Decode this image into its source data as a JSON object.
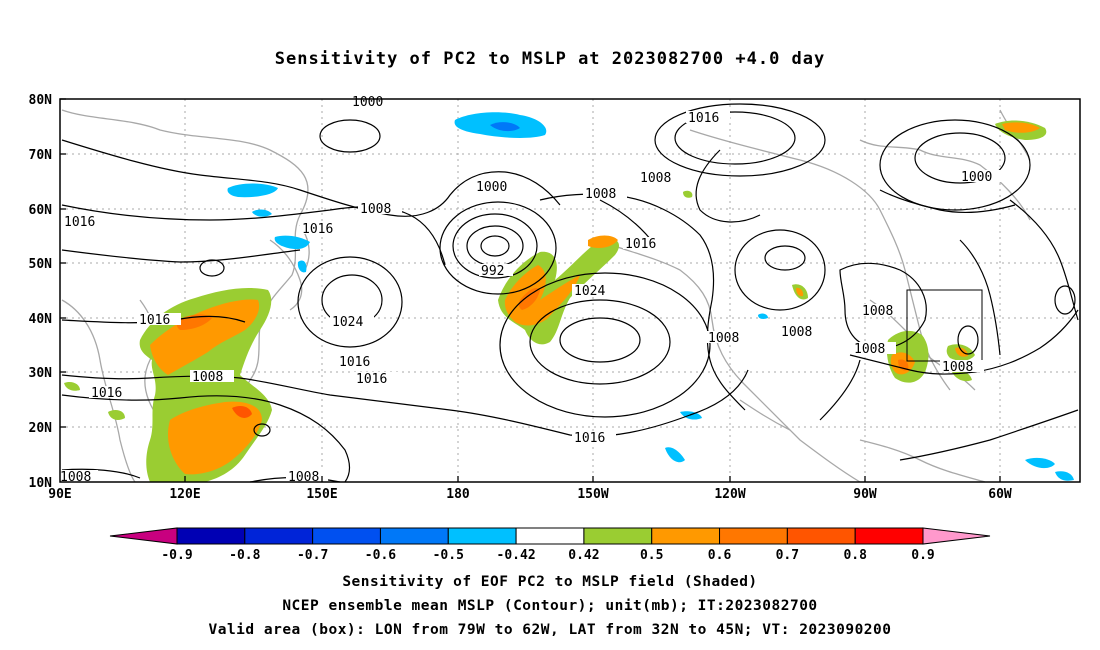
{
  "title": "Sensitivity of PC2 to MSLP at 2023082700 +4.0 day",
  "lat_labels": [
    "80N",
    "70N",
    "60N",
    "50N",
    "40N",
    "30N",
    "20N",
    "10N"
  ],
  "lon_labels": [
    "90E",
    "120E",
    "150E",
    "180",
    "150W",
    "120W",
    "90W",
    "60W"
  ],
  "contour_labels": [
    "1000",
    "1016",
    "1008",
    "1016",
    "1008",
    "1000",
    "1008",
    "1016",
    "1016",
    "992",
    "1024",
    "1016",
    "1024",
    "1016",
    "1016",
    "1008",
    "1008",
    "1008",
    "1016",
    "1008",
    "1008",
    "1016",
    "1008",
    "1008",
    "1000",
    "1008"
  ],
  "colorbar": {
    "colors": [
      "#c8007f",
      "#0000b4",
      "#0024d8",
      "#0050f0",
      "#0078f8",
      "#00c0ff",
      "#ffffff",
      "#9acd32",
      "#ff9900",
      "#ff7700",
      "#ff5500",
      "#ff0000",
      "#ff99cc"
    ],
    "labels": [
      "-0.9",
      "-0.8",
      "-0.7",
      "-0.6",
      "-0.5",
      "-0.42",
      "0.42",
      "0.5",
      "0.6",
      "0.7",
      "0.8",
      "0.9"
    ]
  },
  "footer": {
    "line1": "Sensitivity of EOF PC2 to MSLP field (Shaded)",
    "line2": "NCEP ensemble mean MSLP (Contour); unit(mb); IT:2023082700",
    "line3": "Valid area (box): LON from 79W to 62W, LAT from 32N to 45N; VT: 2023090200"
  }
}
